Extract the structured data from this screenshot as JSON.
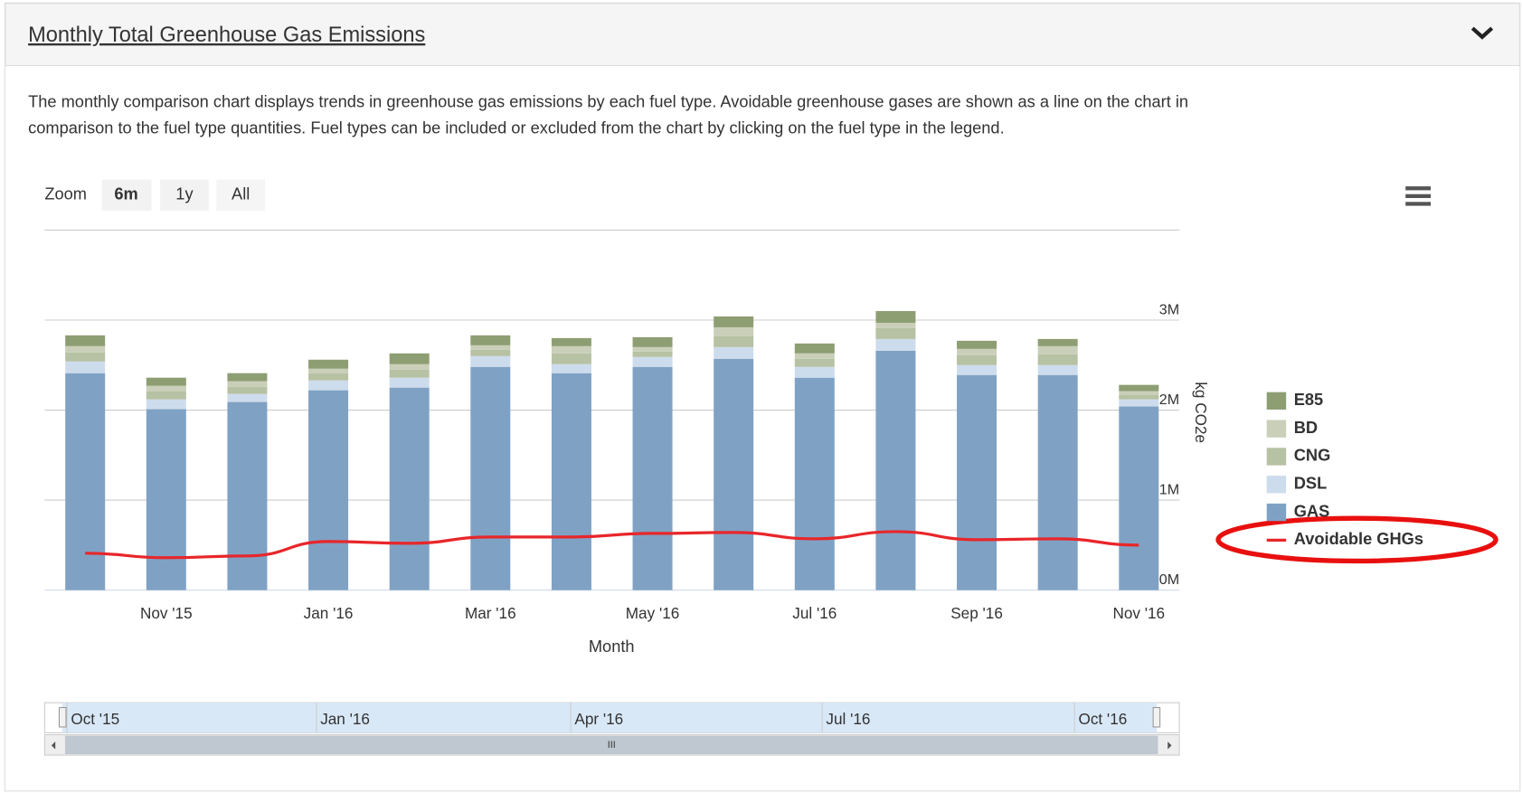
{
  "header": {
    "title": "Monthly Total Greenhouse Gas Emissions"
  },
  "description": [
    "The monthly comparison chart displays trends in greenhouse gas emissions by each fuel type. Avoidable greenhouse gases are shown as a line on the chart in",
    "comparison to the fuel type quantities. Fuel types can be included or excluded from the chart by clicking on the fuel type in the legend."
  ],
  "zoom": {
    "label": "Zoom",
    "buttons": [
      "6m",
      "1y",
      "All"
    ]
  },
  "navigator": {
    "labels": [
      "Oct '15",
      "Jan '16",
      "Apr '16",
      "Jul '16",
      "Oct '16"
    ],
    "scroll_label": "III"
  },
  "chart_data": {
    "type": "bar",
    "stacked": true,
    "x_label": "Month",
    "y_label": "kg CO2e",
    "categories": [
      null,
      "Nov '15",
      null,
      "Jan '16",
      null,
      "Mar '16",
      null,
      "May '16",
      null,
      "Jul '16",
      null,
      "Sep '16",
      null,
      "Nov '16"
    ],
    "ylim": [
      0,
      4000000
    ],
    "yticks": [
      {
        "value": 0,
        "label": "0M"
      },
      {
        "value": 1000000,
        "label": "1M"
      },
      {
        "value": 2000000,
        "label": "2M"
      },
      {
        "value": 3000000,
        "label": "3M"
      }
    ],
    "grid": true,
    "legend": "right",
    "series": [
      {
        "name": "GAS",
        "color": "#7fa2c4",
        "values": [
          2410000,
          2010000,
          2090000,
          2220000,
          2250000,
          2480000,
          2410000,
          2480000,
          2570000,
          2360000,
          2660000,
          2390000,
          2390000,
          2040000
        ]
      },
      {
        "name": "DSL",
        "color": "#cddcec",
        "values": [
          130000,
          110000,
          90000,
          110000,
          110000,
          120000,
          100000,
          110000,
          130000,
          120000,
          130000,
          110000,
          110000,
          80000
        ]
      },
      {
        "name": "CNG",
        "color": "#b7c1a3",
        "values": [
          100000,
          90000,
          80000,
          80000,
          90000,
          70000,
          120000,
          60000,
          120000,
          90000,
          120000,
          110000,
          120000,
          50000
        ]
      },
      {
        "name": "BD",
        "color": "#c9cfb8",
        "values": [
          70000,
          60000,
          60000,
          50000,
          60000,
          50000,
          80000,
          50000,
          100000,
          60000,
          60000,
          70000,
          90000,
          40000
        ]
      },
      {
        "name": "E85",
        "color": "#8e9e73",
        "values": [
          120000,
          90000,
          90000,
          100000,
          120000,
          110000,
          90000,
          110000,
          120000,
          110000,
          130000,
          90000,
          80000,
          70000
        ]
      },
      {
        "name": "Avoidable GHGs",
        "type": "line",
        "color": "#e8262a",
        "values": [
          410000,
          360000,
          380000,
          540000,
          520000,
          590000,
          590000,
          630000,
          640000,
          570000,
          650000,
          560000,
          570000,
          500000
        ]
      }
    ]
  }
}
